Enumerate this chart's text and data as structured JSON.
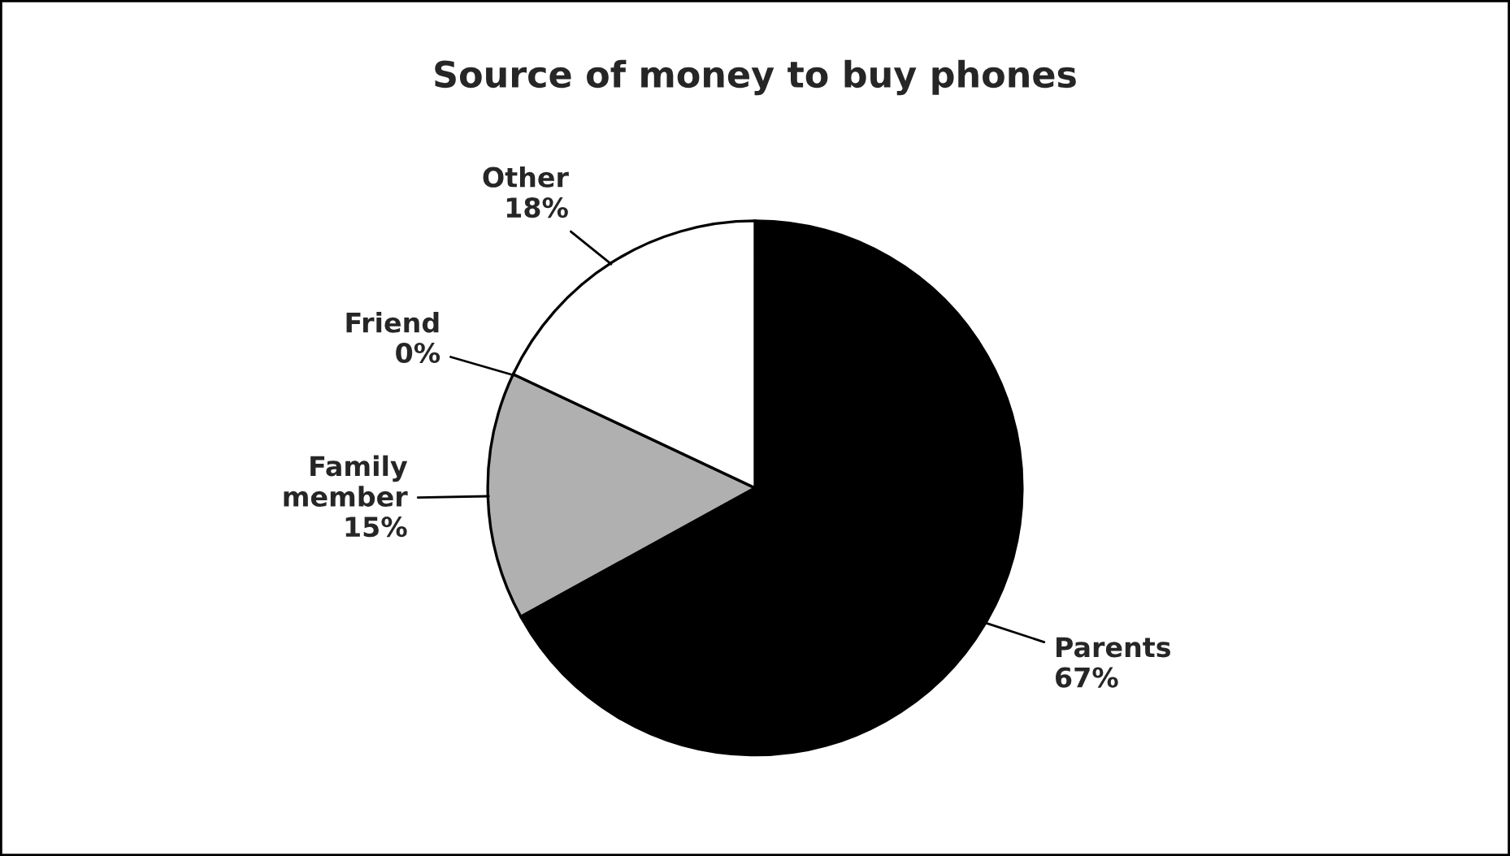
{
  "chart_data": {
    "type": "pie",
    "title": "Source of money to buy phones",
    "categories": [
      "Parents",
      "Family\nmember",
      "Friend",
      "Other"
    ],
    "values": [
      67,
      15,
      0,
      18
    ],
    "value_labels": [
      "67%",
      "15%",
      "0%",
      "18%"
    ],
    "colors": [
      "#000000",
      "#b0b0b0",
      "#808080",
      "#ffffff"
    ]
  }
}
